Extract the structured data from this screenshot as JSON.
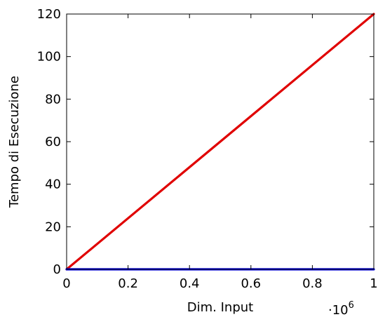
{
  "chart_data": {
    "type": "line",
    "xlabel": "Dim. Input",
    "ylabel": "Tempo di Esecuzione",
    "x_scale_note": {
      "base": "·10",
      "power": "6"
    },
    "xlim": [
      0,
      1
    ],
    "ylim": [
      0,
      120
    ],
    "x_ticks": [
      0,
      0.2,
      0.4,
      0.6,
      0.8,
      1
    ],
    "x_tick_labels": [
      "0",
      "0.2",
      "0.4",
      "0.6",
      "0.8",
      "1"
    ],
    "y_ticks": [
      0,
      20,
      40,
      60,
      80,
      100,
      120
    ],
    "y_tick_labels": [
      "0",
      "20",
      "40",
      "60",
      "80",
      "100",
      "120"
    ],
    "grid": false,
    "series": [
      {
        "color": "#e00000",
        "x": [
          0,
          1
        ],
        "y": [
          0,
          120
        ]
      },
      {
        "color": "#0000e0",
        "x": [
          0,
          1
        ],
        "y": [
          0,
          0
        ]
      }
    ]
  }
}
